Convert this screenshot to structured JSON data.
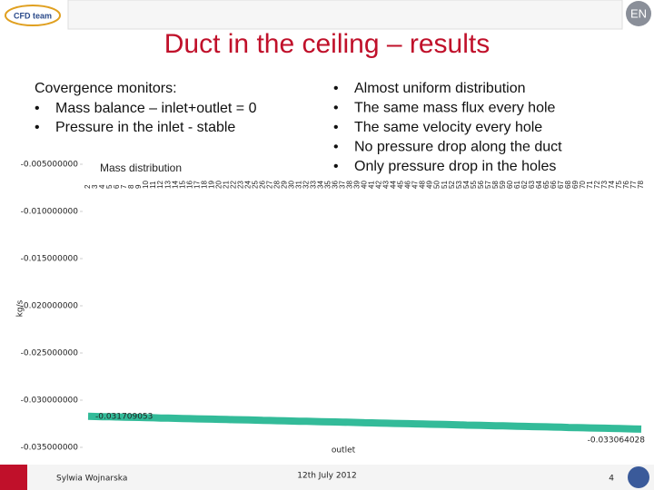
{
  "slide": {
    "logo": "CFD team",
    "badge": "EN",
    "title": "Duct in the ceiling – results",
    "left": {
      "heading": "Covergence monitors:",
      "items": [
        "Mass balance – inlet+outlet = 0",
        "Pressure in the inlet - stable"
      ]
    },
    "right": {
      "items": [
        "Almost uniform distribution",
        "The same mass flux every hole",
        "The same velocity every hole",
        "No pressure drop along the duct",
        "Only pressure drop in the holes"
      ]
    },
    "footer": {
      "author": "Sylwia Wojnarska",
      "date": "12th July 2012",
      "page": "4"
    }
  },
  "chart_data": {
    "type": "line",
    "title": "Mass distribution",
    "y_label": "kg/s",
    "x_label": "outlet",
    "color": "#33bb99",
    "categories": [
      "2",
      "3",
      "4",
      "5",
      "6",
      "7",
      "8",
      "9",
      "10",
      "11",
      "12",
      "13",
      "14",
      "15",
      "16",
      "17",
      "18",
      "19",
      "20",
      "21",
      "22",
      "23",
      "24",
      "25",
      "26",
      "27",
      "28",
      "29",
      "30",
      "31",
      "32",
      "33",
      "34",
      "35",
      "36",
      "37",
      "38",
      "39",
      "40",
      "41",
      "42",
      "43",
      "44",
      "45",
      "46",
      "47",
      "48",
      "49",
      "50",
      "51",
      "52",
      "53",
      "54",
      "55",
      "56",
      "57",
      "58",
      "59",
      "60",
      "61",
      "62",
      "63",
      "64",
      "65",
      "66",
      "67",
      "68",
      "69",
      "70",
      "71",
      "72",
      "73",
      "74",
      "75",
      "76",
      "77",
      "78"
    ],
    "values": [
      -0.031709053,
      -0.03173,
      -0.03175,
      -0.03176,
      -0.03178,
      -0.0318,
      -0.03182,
      -0.03183,
      -0.03185,
      -0.03187,
      -0.03189,
      -0.0319,
      -0.03192,
      -0.03194,
      -0.03196,
      -0.03198,
      -0.03199,
      -0.03201,
      -0.03203,
      -0.03205,
      -0.03207,
      -0.03208,
      -0.0321,
      -0.03212,
      -0.03214,
      -0.03215,
      -0.03217,
      -0.03219,
      -0.03221,
      -0.03223,
      -0.03224,
      -0.03226,
      -0.03228,
      -0.0323,
      -0.03231,
      -0.03233,
      -0.03235,
      -0.03237,
      -0.03239,
      -0.0324,
      -0.03242,
      -0.03244,
      -0.03246,
      -0.03248,
      -0.03249,
      -0.03251,
      -0.03253,
      -0.03255,
      -0.03256,
      -0.03258,
      -0.0326,
      -0.03262,
      -0.03264,
      -0.03265,
      -0.03267,
      -0.03269,
      -0.03271,
      -0.03272,
      -0.03274,
      -0.03276,
      -0.03278,
      -0.0328,
      -0.03281,
      -0.03283,
      -0.03285,
      -0.03287,
      -0.03289,
      -0.0329,
      -0.03292,
      -0.03294,
      -0.03296,
      -0.03297,
      -0.03299,
      -0.03301,
      -0.03303,
      -0.03305,
      -0.033064028
    ],
    "ylim": [
      -0.035,
      -0.005
    ],
    "yticks": [
      {
        "value": -0.035,
        "label": "-0.035000000"
      },
      {
        "value": -0.03,
        "label": "-0.030000000"
      },
      {
        "value": -0.025,
        "label": "-0.025000000"
      },
      {
        "value": -0.02,
        "label": "-0.020000000"
      },
      {
        "value": -0.015,
        "label": "-0.015000000"
      },
      {
        "value": -0.01,
        "label": "-0.010000000"
      },
      {
        "value": -0.005,
        "label": "-0.005000000"
      }
    ],
    "grid": false
  }
}
